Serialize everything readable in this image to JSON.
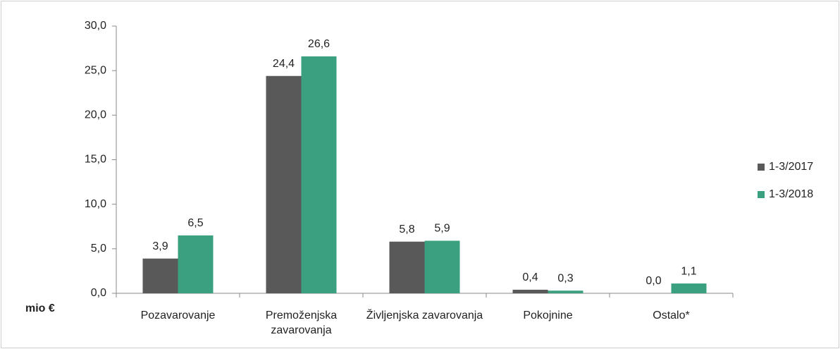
{
  "chart_data": {
    "type": "bar",
    "y_label": "mio €",
    "categories": [
      "Pozavarovanje",
      "Premoženjska zavarovanja",
      "Življenjska zavarovanja",
      "Pokojnine",
      "Ostalo*"
    ],
    "series": [
      {
        "name": "1-3/2017",
        "color": "#595959",
        "values": [
          3.9,
          24.4,
          5.8,
          0.4,
          0.0
        ],
        "value_labels": [
          "3,9",
          "24,4",
          "5,8",
          "0,4",
          "0,0"
        ]
      },
      {
        "name": "1-3/2018",
        "color": "#3aa07f",
        "values": [
          6.5,
          26.6,
          5.9,
          0.3,
          1.1
        ],
        "value_labels": [
          "6,5",
          "26,6",
          "5,9",
          "0,3",
          "1,1"
        ]
      }
    ],
    "ylim": [
      0,
      30
    ],
    "yticks": [
      {
        "value": 0,
        "label": "0,0"
      },
      {
        "value": 5,
        "label": "5,0"
      },
      {
        "value": 10,
        "label": "10,0"
      },
      {
        "value": 15,
        "label": "15,0"
      },
      {
        "value": 20,
        "label": "20,0"
      },
      {
        "value": 25,
        "label": "25,0"
      },
      {
        "value": 30,
        "label": "30,0"
      }
    ],
    "grid": false,
    "legend": "right"
  }
}
